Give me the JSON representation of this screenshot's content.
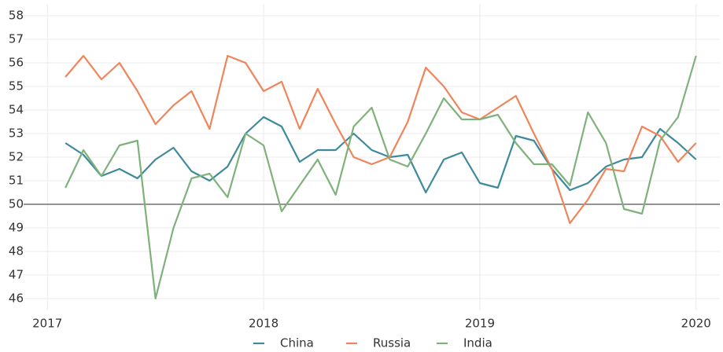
{
  "chart_data": {
    "type": "line",
    "x": [
      "2017-02",
      "2017-03",
      "2017-04",
      "2017-05",
      "2017-06",
      "2017-07",
      "2017-08",
      "2017-09",
      "2017-10",
      "2017-11",
      "2017-12",
      "2018-01",
      "2018-02",
      "2018-03",
      "2018-04",
      "2018-05",
      "2018-06",
      "2018-07",
      "2018-08",
      "2018-09",
      "2018-10",
      "2018-11",
      "2018-12",
      "2019-01",
      "2019-02",
      "2019-03",
      "2019-04",
      "2019-05",
      "2019-06",
      "2019-07",
      "2019-08",
      "2019-09",
      "2019-10",
      "2019-11",
      "2019-12",
      "2020-01"
    ],
    "series": [
      {
        "name": "China",
        "color": "#3e8a9a",
        "values": [
          52.6,
          52.1,
          51.2,
          51.5,
          51.1,
          51.9,
          52.4,
          51.4,
          51.0,
          51.6,
          53.0,
          53.7,
          53.3,
          51.8,
          52.3,
          52.3,
          53.0,
          52.3,
          52.0,
          52.1,
          50.5,
          51.9,
          52.2,
          50.9,
          50.7,
          52.9,
          52.7,
          51.5,
          50.6,
          50.9,
          51.6,
          51.9,
          52.0,
          53.2,
          52.6,
          51.9
        ]
      },
      {
        "name": "Russia",
        "color": "#f0845a",
        "values": [
          55.4,
          56.3,
          55.3,
          56.0,
          54.8,
          53.4,
          54.2,
          54.8,
          53.2,
          56.3,
          56.0,
          54.8,
          55.2,
          53.2,
          54.9,
          53.4,
          52.0,
          51.7,
          52.0,
          53.5,
          55.8,
          55.0,
          53.9,
          53.6,
          54.1,
          54.6,
          53.0,
          51.5,
          49.2,
          50.2,
          51.5,
          51.4,
          53.3,
          52.9,
          51.8,
          52.6
        ]
      },
      {
        "name": "India",
        "color": "#7fb27a",
        "values": [
          50.7,
          52.3,
          51.2,
          52.5,
          52.7,
          46.0,
          49.0,
          51.1,
          51.3,
          50.3,
          53.0,
          52.5,
          49.7,
          50.8,
          51.9,
          50.4,
          53.3,
          54.1,
          51.9,
          51.6,
          53.0,
          54.5,
          53.6,
          53.6,
          53.8,
          52.6,
          51.7,
          51.7,
          50.8,
          53.9,
          52.6,
          49.8,
          49.6,
          52.7,
          53.7,
          56.3
        ]
      }
    ],
    "xlim": [
      2016.89,
      2020.11
    ],
    "xticks": [
      2017,
      2018,
      2019,
      2020
    ],
    "ylim": [
      45.5,
      58.5
    ],
    "yticks": [
      46,
      47,
      48,
      49,
      50,
      51,
      52,
      53,
      54,
      55,
      56,
      57,
      58
    ],
    "hline": 50,
    "grid": true,
    "legend": "bottom"
  }
}
